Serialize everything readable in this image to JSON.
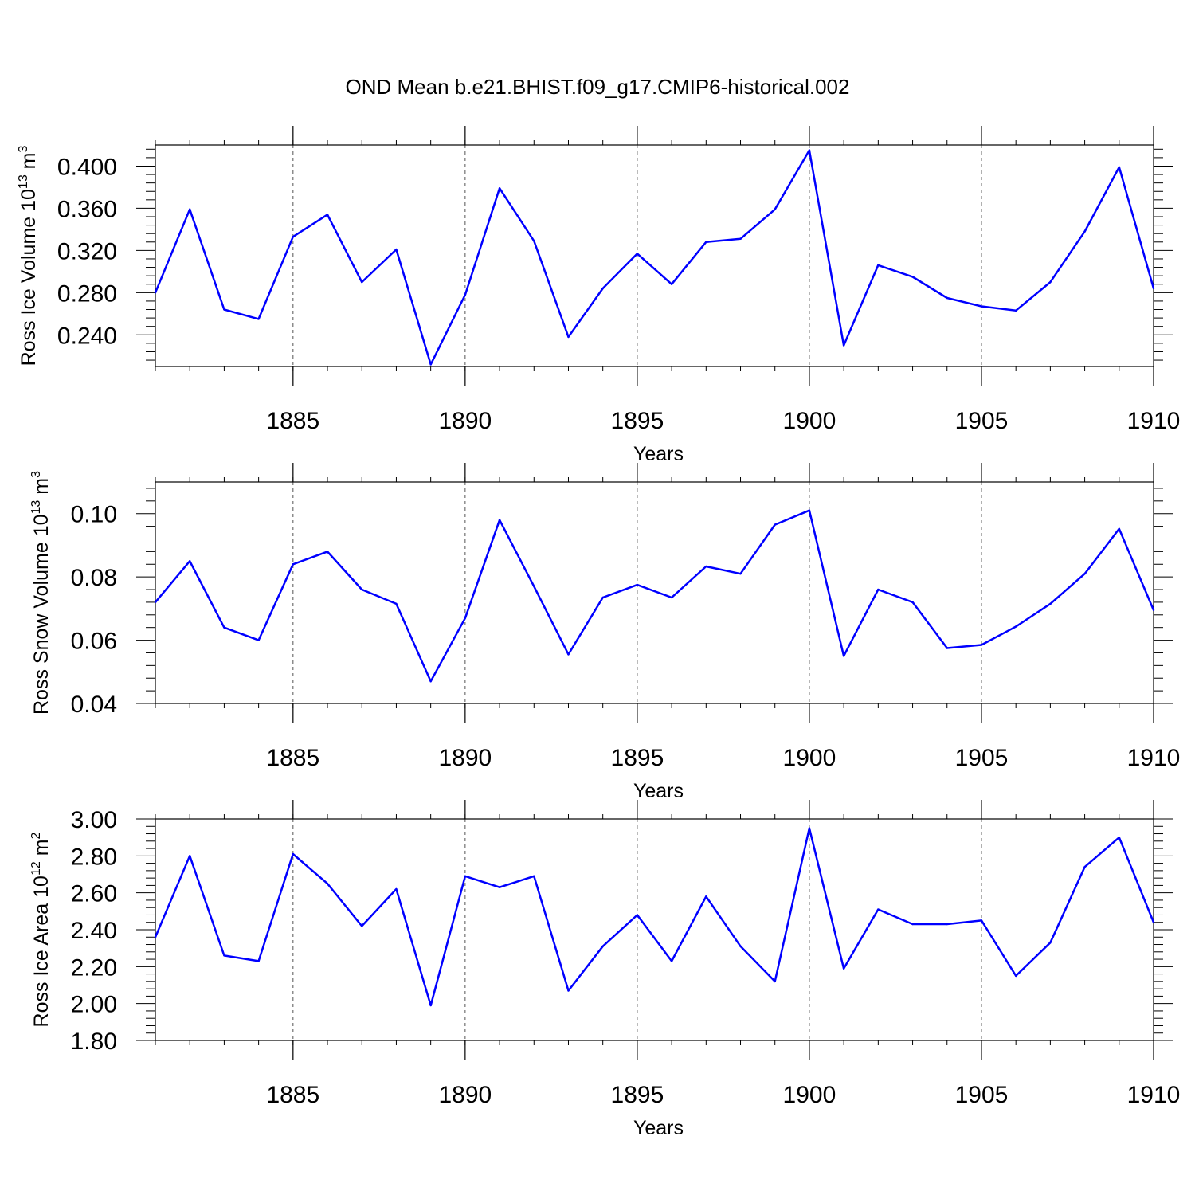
{
  "title": "OND Mean b.e21.BHIST.f09_g17.CMIP6-historical.002",
  "colors": {
    "line": "#0000ff",
    "axis": "#000000",
    "grid": "#555555"
  },
  "chart_data": [
    {
      "type": "line",
      "name": "ross-ice-volume",
      "ylabel": {
        "prefix": "Ross Ice Volume 10",
        "exp1": "13",
        "mid": " m",
        "exp2": "3"
      },
      "xlabel": "Years",
      "xlim": [
        1881,
        1910
      ],
      "ylim": [
        0.21,
        0.42
      ],
      "yticks": [
        0.24,
        0.28,
        0.32,
        0.36,
        0.4
      ],
      "ytick_labels": [
        "0.240",
        "0.280",
        "0.320",
        "0.360",
        "0.400"
      ],
      "xticks": [
        1885,
        1890,
        1895,
        1900,
        1905,
        1910
      ],
      "xtick_labels": [
        "1885",
        "1890",
        "1895",
        "1900",
        "1905",
        "1910"
      ],
      "grid_x": [
        1885,
        1890,
        1895,
        1900,
        1905
      ],
      "x": [
        1881,
        1882,
        1883,
        1884,
        1885,
        1886,
        1887,
        1888,
        1889,
        1890,
        1891,
        1892,
        1893,
        1894,
        1895,
        1896,
        1897,
        1898,
        1899,
        1900,
        1901,
        1902,
        1903,
        1904,
        1905,
        1906,
        1907,
        1908,
        1909,
        1910
      ],
      "values": [
        0.28,
        0.359,
        0.264,
        0.255,
        0.333,
        0.354,
        0.29,
        0.321,
        0.212,
        0.278,
        0.379,
        0.329,
        0.238,
        0.284,
        0.317,
        0.288,
        0.328,
        0.331,
        0.359,
        0.415,
        0.23,
        0.306,
        0.295,
        0.275,
        0.267,
        0.263,
        0.29,
        0.338,
        0.399,
        0.284
      ]
    },
    {
      "type": "line",
      "name": "ross-snow-volume",
      "ylabel": {
        "prefix": "Ross Snow Volume 10",
        "exp1": "13",
        "mid": " m",
        "exp2": "3"
      },
      "xlabel": "Years",
      "xlim": [
        1881,
        1910
      ],
      "ylim": [
        0.04,
        0.11
      ],
      "yticks": [
        0.04,
        0.06,
        0.08,
        0.1
      ],
      "ytick_labels": [
        "0.04",
        "0.06",
        "0.08",
        "0.10"
      ],
      "xticks": [
        1885,
        1890,
        1895,
        1900,
        1905,
        1910
      ],
      "xtick_labels": [
        "1885",
        "1890",
        "1895",
        "1900",
        "1905",
        "1910"
      ],
      "grid_x": [
        1885,
        1890,
        1895,
        1900,
        1905
      ],
      "x": [
        1881,
        1882,
        1883,
        1884,
        1885,
        1886,
        1887,
        1888,
        1889,
        1890,
        1891,
        1892,
        1893,
        1894,
        1895,
        1896,
        1897,
        1898,
        1899,
        1900,
        1901,
        1902,
        1903,
        1904,
        1905,
        1906,
        1907,
        1908,
        1909,
        1910
      ],
      "values": [
        0.072,
        0.085,
        0.064,
        0.06,
        0.084,
        0.088,
        0.076,
        0.0715,
        0.047,
        0.067,
        0.098,
        0.077,
        0.0555,
        0.0735,
        0.0775,
        0.0735,
        0.0833,
        0.081,
        0.0965,
        0.101,
        0.055,
        0.076,
        0.072,
        0.0575,
        0.0585,
        0.0643,
        0.0715,
        0.081,
        0.0952,
        0.0695
      ]
    },
    {
      "type": "line",
      "name": "ross-ice-area",
      "ylabel": {
        "prefix": "Ross Ice Area 10",
        "exp1": "12",
        "mid": " m",
        "exp2": "2"
      },
      "xlabel": "Years",
      "xlim": [
        1881,
        1910
      ],
      "ylim": [
        1.8,
        3.0
      ],
      "yticks": [
        1.8,
        2.0,
        2.2,
        2.4,
        2.6,
        2.8,
        3.0
      ],
      "ytick_labels": [
        "1.80",
        "2.00",
        "2.20",
        "2.40",
        "2.60",
        "2.80",
        "3.00"
      ],
      "xticks": [
        1885,
        1890,
        1895,
        1900,
        1905,
        1910
      ],
      "xtick_labels": [
        "1885",
        "1890",
        "1895",
        "1900",
        "1905",
        "1910"
      ],
      "grid_x": [
        1885,
        1890,
        1895,
        1900,
        1905
      ],
      "x": [
        1881,
        1882,
        1883,
        1884,
        1885,
        1886,
        1887,
        1888,
        1889,
        1890,
        1891,
        1892,
        1893,
        1894,
        1895,
        1896,
        1897,
        1898,
        1899,
        1900,
        1901,
        1902,
        1903,
        1904,
        1905,
        1906,
        1907,
        1908,
        1909,
        1910
      ],
      "values": [
        2.36,
        2.8,
        2.26,
        2.23,
        2.81,
        2.65,
        2.42,
        2.62,
        1.99,
        2.69,
        2.63,
        2.69,
        2.07,
        2.31,
        2.48,
        2.23,
        2.58,
        2.31,
        2.12,
        2.95,
        2.19,
        2.51,
        2.43,
        2.43,
        2.45,
        2.15,
        2.33,
        2.74,
        2.9,
        2.44
      ]
    }
  ]
}
